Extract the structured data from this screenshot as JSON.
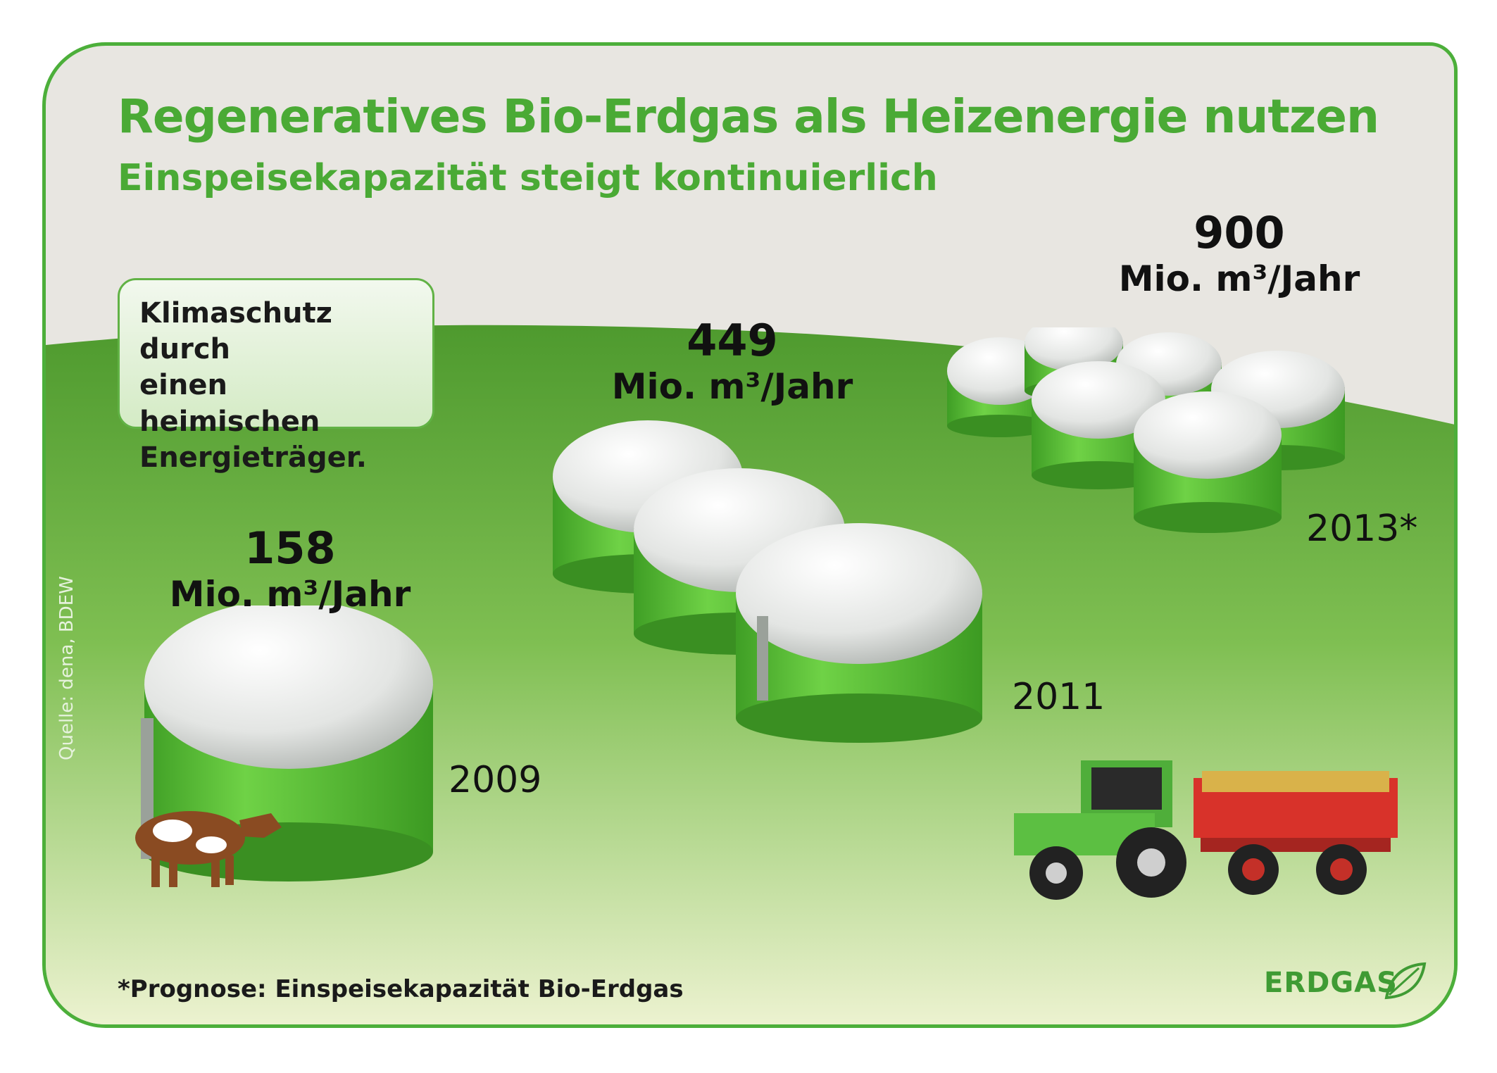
{
  "title": "Regeneratives Bio-Erdgas als Heizenergie nutzen",
  "subtitle": "Einspeisekapazität steigt kontinuierlich",
  "info_box": {
    "lines": [
      "Klimaschutz durch",
      "einen heimischen",
      "Energieträger."
    ]
  },
  "milestones": [
    {
      "value": "158",
      "unit": "Mio. m³/Jahr",
      "year": "2009"
    },
    {
      "value": "449",
      "unit": "Mio. m³/Jahr",
      "year": "2011"
    },
    {
      "value": "900",
      "unit": "Mio. m³/Jahr",
      "year": "2013*"
    }
  ],
  "source": "Quelle: dena, BDEW",
  "footnote": "*Prognose: Einspeisekapazität Bio-Erdgas",
  "brand": "ERDGAS",
  "colors": {
    "brand_green": "#4aaa35",
    "tank_green": "#5ec43a",
    "field_dark": "#4e9a2e",
    "field_light": "#e8f0c8"
  },
  "icons": [
    "biogas-tank-icon",
    "cow-icon",
    "tractor-icon",
    "leaf-icon"
  ]
}
